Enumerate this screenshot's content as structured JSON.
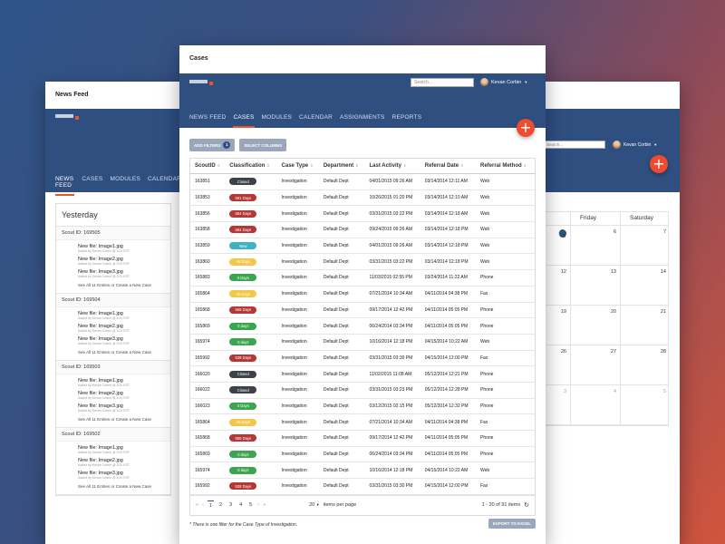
{
  "newsfeed": {
    "title": "News Feed",
    "nav": [
      "NEWS FEED",
      "CASES",
      "MODULES",
      "CALENDAR"
    ],
    "heading": "Yesterday",
    "blocks": [
      {
        "scout": "Scout ID: 169505",
        "files": [
          {
            "name": "New file: Image1.jpg",
            "meta": "Added by Kevan Corbin @ 3:10 EST"
          },
          {
            "name": "New file: Image2.jpg",
            "meta": "Added by Kevan Corbin @ 3:10 EST"
          },
          {
            "name": "New file: Image3.jpg",
            "meta": "Added by Kevan Corbin @ 3:10 EST"
          }
        ],
        "see_all": "See All 11 Entries or Create a New Case"
      },
      {
        "scout": "Scout ID: 169504",
        "files": [
          {
            "name": "New file: Image1.jpg",
            "meta": "Added by Kevan Corbin @ 3:10 EST"
          },
          {
            "name": "New file: Image2.jpg",
            "meta": "Added by Kevan Corbin @ 3:10 EST"
          },
          {
            "name": "New file: Image3.jpg",
            "meta": "Added by Kevan Corbin @ 3:10 EST"
          }
        ],
        "see_all": "See All 11 Entries or Create a New Case"
      },
      {
        "scout": "Scout ID: 169503",
        "files": [
          {
            "name": "New file: Image1.jpg",
            "meta": "Added by Kevan Corbin @ 3:10 EST"
          },
          {
            "name": "New file: Image2.jpg",
            "meta": "Added by Kevan Corbin @ 3:10 EST"
          },
          {
            "name": "New file: Image3.jpg",
            "meta": "Added by Kevan Corbin @ 3:10 EST"
          }
        ],
        "see_all": "See All 11 Entries or Create a New Case"
      },
      {
        "scout": "Scout ID: 169502",
        "files": [
          {
            "name": "New file: Image1.jpg",
            "meta": "Added by Kevan Corbin @ 3:10 EST"
          },
          {
            "name": "New file: Image2.jpg",
            "meta": "Added by Kevan Corbin @ 3:10 EST"
          },
          {
            "name": "New file: Image3.jpg",
            "meta": "Added by Kevan Corbin @ 3:10 EST"
          }
        ],
        "see_all": "See All 11 Entries or Create a New Case"
      }
    ]
  },
  "calendar": {
    "search_placeholder": "Search...",
    "user": "Kevan Corbin",
    "days": [
      "",
      "Friday",
      "Saturday"
    ],
    "weeks": [
      [
        "5",
        "6",
        "7"
      ],
      [
        "12",
        "13",
        "14"
      ],
      [
        "19",
        "20",
        "21"
      ],
      [
        "26",
        "27",
        "28"
      ],
      [
        "3",
        "4",
        "5"
      ]
    ]
  },
  "cases": {
    "title": "Cases",
    "search_placeholder": "Search...",
    "user": "Kevan Corbin",
    "nav": [
      "NEWS FEED",
      "CASES",
      "MODULES",
      "CALENDAR",
      "ASSIGNMENTS",
      "REPORTS"
    ],
    "add_filters": "ADD FILTERS",
    "filter_count": "1",
    "select_columns": "SELECT COLUMNS",
    "columns": [
      "ScoutID",
      "Classification",
      "Case Type",
      "Department",
      "Last Activity",
      "Referral Date",
      "Referral Method"
    ],
    "rows": [
      [
        "163851",
        "Closed",
        "Investigation",
        "Default Dept",
        "04/01/2015 09:26 AM",
        "03/14/2014 12:11 AM",
        "Web"
      ],
      [
        "163853",
        "591 Days",
        "Investigation",
        "Default Dept",
        "10/26/2015 01:20 PM",
        "03/14/2014 12:10 AM",
        "Web"
      ],
      [
        "163856",
        "584 Days",
        "Investigation",
        "Default Dept",
        "03/31/2015 03:22 PM",
        "03/14/2014 12:18 AM",
        "Web"
      ],
      [
        "163858",
        "584 Days",
        "Investigation",
        "Default Dept",
        "09/24/2015 09:26 AM",
        "03/14/2014 12:18 PM",
        "Web"
      ],
      [
        "163859",
        "New",
        "Investigation",
        "Default Dept",
        "04/01/2015 09:26 AM",
        "03/14/2014 12:18 PM",
        "Web"
      ],
      [
        "163860",
        "45 Days",
        "Investigation",
        "Default Dept",
        "03/31/2015 03:22 PM",
        "03/14/2014 12:18 PM",
        "Web"
      ],
      [
        "165883",
        "0 Days",
        "Investigation",
        "Default Dept",
        "11/03/2015 02:55 PM",
        "03/24/2014 11:22 AM",
        "Phone"
      ],
      [
        "165864",
        "45 Days",
        "Investigation",
        "Default Dept",
        "07/21/2014 10:34 AM",
        "04/11/2014 04:38 PM",
        "Fax"
      ],
      [
        "165868",
        "555 Days",
        "Investigation",
        "Default Dept",
        "09/17/2014 12:42 PM",
        "04/11/2014 05:05 PM",
        "Phone"
      ],
      [
        "165869",
        "0 days",
        "Investigation",
        "Default Dept",
        "06/24/2014 03:34 PM",
        "04/11/2014 05:05 PM",
        "Phone"
      ],
      [
        "165974",
        "0 days",
        "Investigation",
        "Default Dept",
        "10/16/2014 12:18 PM",
        "04/15/2014 10:22 AM",
        "Web"
      ],
      [
        "165992",
        "538 Days",
        "Investigation",
        "Default Dept",
        "03/31/2015 03:30 PM",
        "04/15/2014 12:00 PM",
        "Fax"
      ],
      [
        "166020",
        "Closed",
        "Investigation",
        "Default Dept",
        "11/02/2015 11:08 AM",
        "05/12/2014 12:21 PM",
        "Phone"
      ],
      [
        "166022",
        "Closed",
        "Investigation",
        "Default Dept",
        "03/31/2015 03:23 PM",
        "05/12/2014 12:28 PM",
        "Phone"
      ],
      [
        "166023",
        "0 Days",
        "Investigation",
        "Default Dept",
        "03/12/2015 02:15 PM",
        "05/12/2014 12:32 PM",
        "Phone"
      ],
      [
        "165864",
        "45 Days",
        "Investigation",
        "Default Dept",
        "07/21/2014 10:34 AM",
        "04/11/2014 04:38 PM",
        "Fax"
      ],
      [
        "165868",
        "555 Days",
        "Investigation",
        "Default Dept",
        "09/17/2014 12:42 PM",
        "04/11/2014 05:05 PM",
        "Phone"
      ],
      [
        "165869",
        "0 days",
        "Investigation",
        "Default Dept",
        "06/24/2014 03:34 PM",
        "04/11/2014 05:05 PM",
        "Phone"
      ],
      [
        "165974",
        "0 days",
        "Investigation",
        "Default Dept",
        "10/16/2014 12:18 PM",
        "04/15/2014 10:22 AM",
        "Web"
      ],
      [
        "165992",
        "538 Days",
        "Investigation",
        "Default Dept",
        "03/31/2015 03:30 PM",
        "04/15/2014 12:00 PM",
        "Fax"
      ]
    ],
    "badge_colors": {
      "Closed": "#3d4248",
      "New": "#3db4c1",
      "red": "#b53737",
      "yellow": "#f3c74a",
      "green": "#3aa64f"
    },
    "pager": {
      "first": "«",
      "prev": "‹",
      "pages": [
        "1",
        "2",
        "3",
        "4",
        "5"
      ],
      "next": "›",
      "last": "»",
      "page_size": "20",
      "page_size_label": "items per page",
      "summary": "1 - 20 of 91 items"
    },
    "footer_note": "* There is one filter for the Case Type of Investigation.",
    "export": "EXPORT TO EXCEL"
  }
}
